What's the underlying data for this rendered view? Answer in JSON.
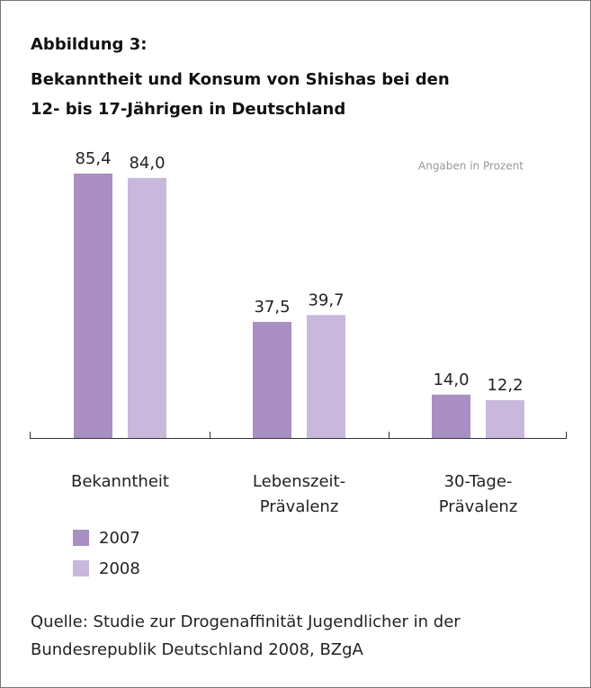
{
  "chart_data": {
    "type": "bar",
    "figure_label": "Abbildung 3:",
    "title": "Bekanntheit und Konsum von Shishas bei den 12- bis 17-Jährigen in Deutschland",
    "note": "Angaben in Prozent",
    "categories": [
      "Bekanntheit",
      "Lebenszeit-Prävalenz",
      "30-Tage-Prävalenz"
    ],
    "series": [
      {
        "name": "2007",
        "color": "#a98fc4",
        "values": [
          85.4,
          37.5,
          14.0
        ],
        "value_labels": [
          "85,4",
          "37,5",
          "14,0"
        ]
      },
      {
        "name": "2008",
        "color": "#c8b8dc",
        "values": [
          84.0,
          39.7,
          12.2
        ],
        "value_labels": [
          "84,0",
          "39,7",
          "12,2"
        ]
      }
    ],
    "source": "Quelle: Studie zur Drogenaffinität Jugendlicher in der Bundesrepublik Deutschland 2008, BZgA"
  }
}
